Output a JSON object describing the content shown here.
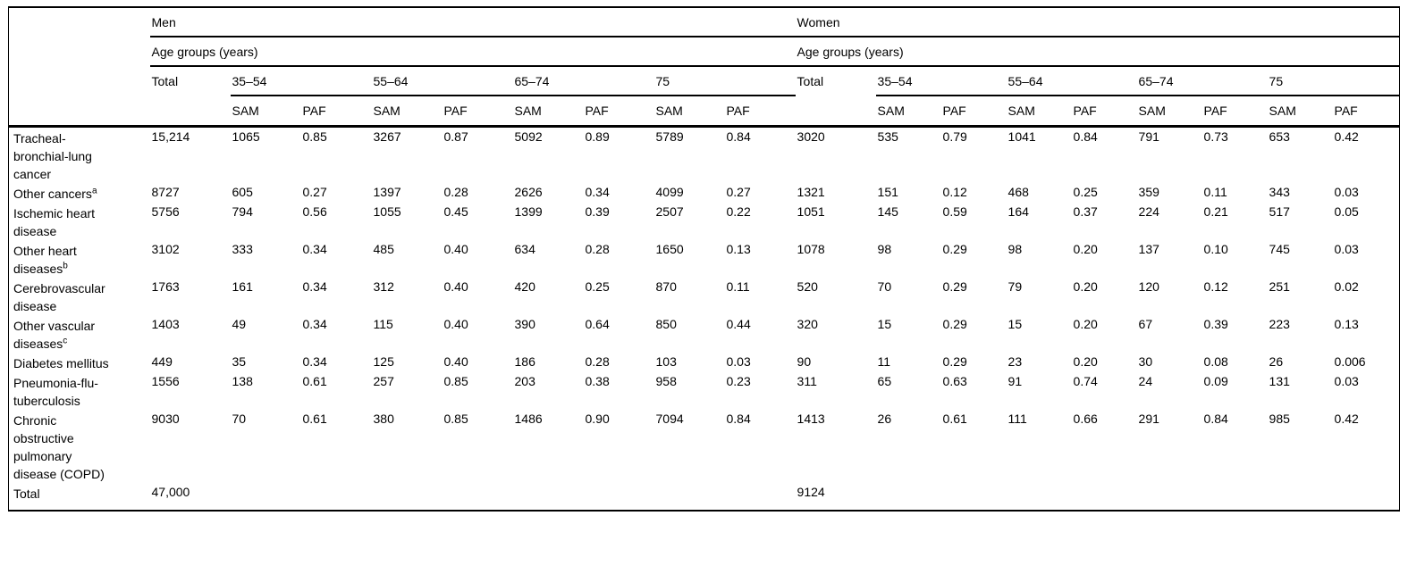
{
  "table": {
    "sections": [
      {
        "label": "Men"
      },
      {
        "label": "Women"
      }
    ],
    "age_groups_label": "Age groups (years)",
    "total_label": "Total",
    "age_groups": [
      "35–54",
      "55–64",
      "65–74",
      "75"
    ],
    "subcols": [
      "SAM",
      "PAF"
    ],
    "rows": [
      {
        "label": "Tracheal-bronchial-lung cancer",
        "sup": "",
        "cells": [
          "15,214",
          "1065",
          "0.85",
          "3267",
          "0.87",
          "5092",
          "0.89",
          "5789",
          "0.84",
          "3020",
          "535",
          "0.79",
          "1041",
          "0.84",
          "791",
          "0.73",
          "653",
          "0.42"
        ]
      },
      {
        "label": "Other cancers",
        "sup": "a",
        "cells": [
          "8727",
          "605",
          "0.27",
          "1397",
          "0.28",
          "2626",
          "0.34",
          "4099",
          "0.27",
          "1321",
          "151",
          "0.12",
          "468",
          "0.25",
          "359",
          "0.11",
          "343",
          "0.03"
        ]
      },
      {
        "label": "Ischemic heart disease",
        "sup": "",
        "cells": [
          "5756",
          "794",
          "0.56",
          "1055",
          "0.45",
          "1399",
          "0.39",
          "2507",
          "0.22",
          "1051",
          "145",
          "0.59",
          "164",
          "0.37",
          "224",
          "0.21",
          "517",
          "0.05"
        ]
      },
      {
        "label": "Other heart diseases",
        "sup": "b",
        "cells": [
          "3102",
          "333",
          "0.34",
          "485",
          "0.40",
          "634",
          "0.28",
          "1650",
          "0.13",
          "1078",
          "98",
          "0.29",
          "98",
          "0.20",
          "137",
          "0.10",
          "745",
          "0.03"
        ]
      },
      {
        "label": "Cerebrovascular disease",
        "sup": "",
        "cells": [
          "1763",
          "161",
          "0.34",
          "312",
          "0.40",
          "420",
          "0.25",
          "870",
          "0.11",
          "520",
          "70",
          "0.29",
          "79",
          "0.20",
          "120",
          "0.12",
          "251",
          "0.02"
        ]
      },
      {
        "label": "Other vascular diseases",
        "sup": "c",
        "cells": [
          "1403",
          "49",
          "0.34",
          "115",
          "0.40",
          "390",
          "0.64",
          "850",
          "0.44",
          "320",
          "15",
          "0.29",
          "15",
          "0.20",
          "67",
          "0.39",
          "223",
          "0.13"
        ]
      },
      {
        "label": "Diabetes mellitus",
        "sup": "",
        "cells": [
          "449",
          "35",
          "0.34",
          "125",
          "0.40",
          "186",
          "0.28",
          "103",
          "0.03",
          "90",
          "11",
          "0.29",
          "23",
          "0.20",
          "30",
          "0.08",
          "26",
          "0.006"
        ]
      },
      {
        "label": "Pneumonia-flu-tuberculosis",
        "sup": "",
        "cells": [
          "1556",
          "138",
          "0.61",
          "257",
          "0.85",
          "203",
          "0.38",
          "958",
          "0.23",
          "311",
          "65",
          "0.63",
          "91",
          "0.74",
          "24",
          "0.09",
          "131",
          "0.03"
        ]
      },
      {
        "label": "Chronic obstructive pulmonary disease (COPD)",
        "sup": "",
        "cells": [
          "9030",
          "70",
          "0.61",
          "380",
          "0.85",
          "1486",
          "0.90",
          "7094",
          "0.84",
          "1413",
          "26",
          "0.61",
          "111",
          "0.66",
          "291",
          "0.84",
          "985",
          "0.42"
        ]
      },
      {
        "label": "Total",
        "sup": "",
        "total_row": true,
        "cells": [
          "47,000",
          "",
          "",
          "",
          "",
          "",
          "",
          "",
          "",
          "9124",
          "",
          "",
          "",
          "",
          "",
          "",
          "",
          ""
        ]
      }
    ]
  }
}
